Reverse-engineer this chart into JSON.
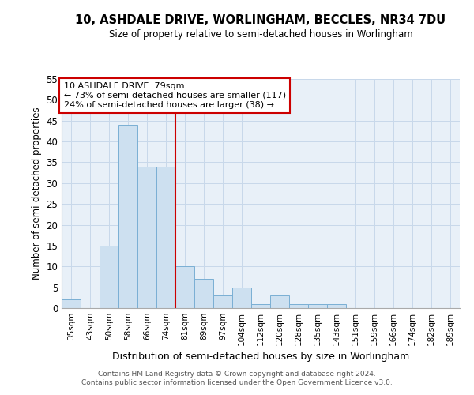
{
  "title": "10, ASHDALE DRIVE, WORLINGHAM, BECCLES, NR34 7DU",
  "subtitle": "Size of property relative to semi-detached houses in Worlingham",
  "xlabel": "Distribution of semi-detached houses by size in Worlingham",
  "ylabel": "Number of semi-detached properties",
  "categories": [
    "35sqm",
    "43sqm",
    "50sqm",
    "58sqm",
    "66sqm",
    "74sqm",
    "81sqm",
    "89sqm",
    "97sqm",
    "104sqm",
    "112sqm",
    "120sqm",
    "128sqm",
    "135sqm",
    "143sqm",
    "151sqm",
    "159sqm",
    "166sqm",
    "174sqm",
    "182sqm",
    "189sqm"
  ],
  "values": [
    2,
    0,
    15,
    44,
    34,
    34,
    10,
    7,
    3,
    5,
    1,
    3,
    1,
    1,
    1,
    0,
    0,
    0,
    0,
    0,
    0
  ],
  "bar_color": "#cde0f0",
  "bar_edge_color": "#7aafd4",
  "vline_x_index": 6,
  "vline_color": "#cc0000",
  "annotation_title": "10 ASHDALE DRIVE: 79sqm",
  "annotation_line1": "← 73% of semi-detached houses are smaller (117)",
  "annotation_line2": "24% of semi-detached houses are larger (38) →",
  "annotation_box_facecolor": "#ffffff",
  "annotation_box_edgecolor": "#cc0000",
  "ylim": [
    0,
    55
  ],
  "yticks": [
    0,
    5,
    10,
    15,
    20,
    25,
    30,
    35,
    40,
    45,
    50,
    55
  ],
  "footer1": "Contains HM Land Registry data © Crown copyright and database right 2024.",
  "footer2": "Contains public sector information licensed under the Open Government Licence v3.0.",
  "grid_color": "#c8d8ea",
  "background_color": "#e8f0f8"
}
